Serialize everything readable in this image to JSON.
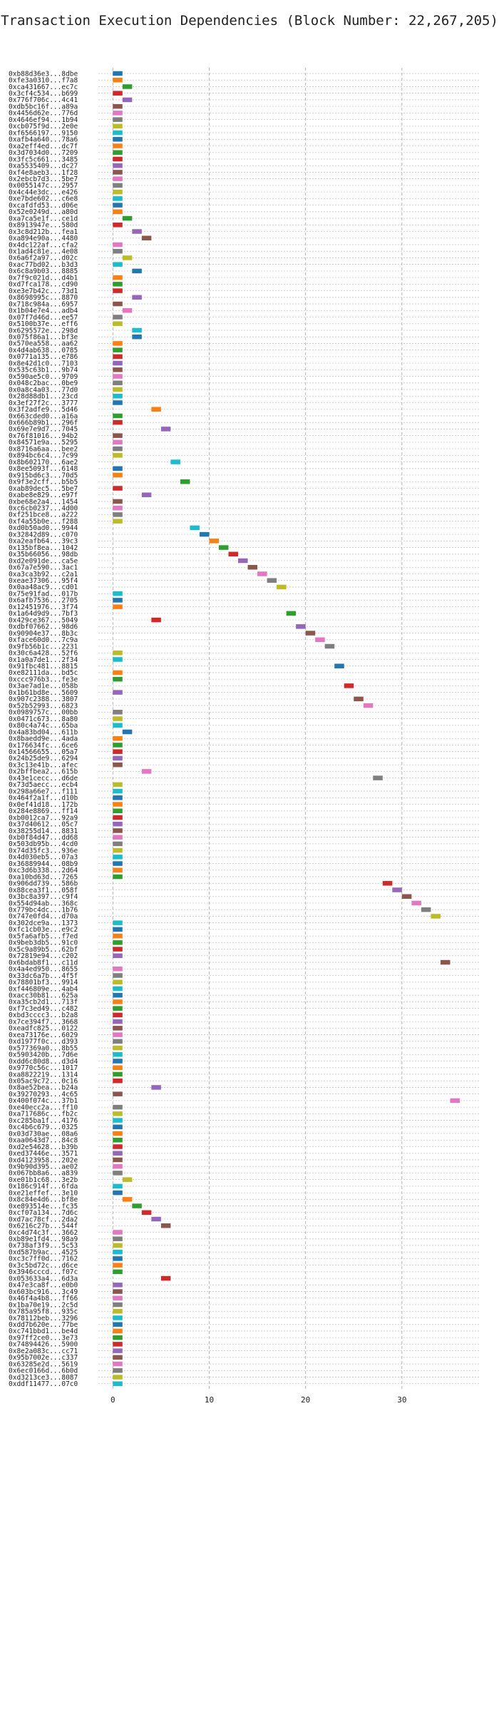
{
  "chart_data": {
    "type": "bar",
    "title": "Transaction Execution Dependencies (Block Number: 22,267,205)",
    "xlabel": "",
    "ylabel": "",
    "xlim": [
      -1.5,
      38
    ],
    "xticks": [
      0,
      10,
      20,
      30
    ],
    "grid": true,
    "bar_width": 1,
    "palette": [
      "#1f77b4",
      "#ff7f0e",
      "#2ca02c",
      "#d62728",
      "#9467bd",
      "#8c564b",
      "#e377c2",
      "#7f7f7f",
      "#bcbd22",
      "#17becf"
    ],
    "transactions": [
      {
        "label": "0xb88d36e3...8dbe",
        "start": 0
      },
      {
        "label": "0xfe3a0310...f7a8",
        "start": 0
      },
      {
        "label": "0xca431667...ec7c",
        "start": 1
      },
      {
        "label": "0x3cf4c534...b699",
        "start": 0
      },
      {
        "label": "0x776f706c...4c41",
        "start": 1
      },
      {
        "label": "0xdb5bc16f...a89a",
        "start": 0
      },
      {
        "label": "0x4456d62e...776d",
        "start": 0
      },
      {
        "label": "0x4646ef94...1b94",
        "start": 0
      },
      {
        "label": "0xcb075f9d...2e0e",
        "start": 0
      },
      {
        "label": "0xf6566197...9150",
        "start": 0
      },
      {
        "label": "0xafb4a640...78a6",
        "start": 0
      },
      {
        "label": "0xa2eff4ed...dc7f",
        "start": 0
      },
      {
        "label": "0x3d7034d0...7209",
        "start": 0
      },
      {
        "label": "0x3fc5c661...3485",
        "start": 0
      },
      {
        "label": "0xa5535409...dc27",
        "start": 0
      },
      {
        "label": "0xf4e8aeb3...1f28",
        "start": 0
      },
      {
        "label": "0x2ebcb7d3...5be7",
        "start": 0
      },
      {
        "label": "0x0055147c...2957",
        "start": 0
      },
      {
        "label": "0x4c44e3dc...e426",
        "start": 0
      },
      {
        "label": "0xe7bde602...c6e8",
        "start": 0
      },
      {
        "label": "0xcafdfd53...d06e",
        "start": 0
      },
      {
        "label": "0x52e0249d...a80d",
        "start": 0
      },
      {
        "label": "0xa7ca5e1f...ce1d",
        "start": 1
      },
      {
        "label": "0x8913947e...580d",
        "start": 0
      },
      {
        "label": "0x3c8d212b...fea1",
        "start": 2
      },
      {
        "label": "0xa894e90a...4480",
        "start": 3
      },
      {
        "label": "0x4dc122af...cfa2",
        "start": 0
      },
      {
        "label": "0x1ad4c81e...4e08",
        "start": 0
      },
      {
        "label": "0x6a6f2a97...d02c",
        "start": 1
      },
      {
        "label": "0xac77bd02...b3d3",
        "start": 0
      },
      {
        "label": "0x6c8a9b03...8885",
        "start": 2
      },
      {
        "label": "0x7f9c021d...d4b1",
        "start": 0
      },
      {
        "label": "0xd7fca178...cd90",
        "start": 0
      },
      {
        "label": "0xe3e7b42c...73d1",
        "start": 0
      },
      {
        "label": "0x8698995c...8870",
        "start": 2
      },
      {
        "label": "0x718c984a...6957",
        "start": 0
      },
      {
        "label": "0x1b04e7e4...adb4",
        "start": 1
      },
      {
        "label": "0x07f7d46d...ee57",
        "start": 0
      },
      {
        "label": "0x5100b37e...eff6",
        "start": 0
      },
      {
        "label": "0x6295572e...298d",
        "start": 2
      },
      {
        "label": "0x075f86a1...bf3e",
        "start": 2
      },
      {
        "label": "0x570ea558...aa62",
        "start": 0
      },
      {
        "label": "0x4d4ab638...0785",
        "start": 0
      },
      {
        "label": "0x0771a135...e786",
        "start": 0
      },
      {
        "label": "0x8e42d1c0...7103",
        "start": 0
      },
      {
        "label": "0x535c63b1...9b74",
        "start": 0
      },
      {
        "label": "0x590ae5c0...9709",
        "start": 0
      },
      {
        "label": "0x048c2bac...0be9",
        "start": 0
      },
      {
        "label": "0x0a8c4a03...77d0",
        "start": 0
      },
      {
        "label": "0x28d88db1...23cd",
        "start": 0
      },
      {
        "label": "0x3ef27f2c...3777",
        "start": 0
      },
      {
        "label": "0x3f2adfe9...5d46",
        "start": 4
      },
      {
        "label": "0x663cded0...a16a",
        "start": 0
      },
      {
        "label": "0x666b89b1...296f",
        "start": 0
      },
      {
        "label": "0x69e7e9d7...7045",
        "start": 5
      },
      {
        "label": "0x76f81016...94b2",
        "start": 0
      },
      {
        "label": "0x84571e9a...5295",
        "start": 0
      },
      {
        "label": "0x8716a6aa...bee2",
        "start": 0
      },
      {
        "label": "0x894bc6c4...7c99",
        "start": 0
      },
      {
        "label": "0x8b602170...6ae2",
        "start": 6
      },
      {
        "label": "0x8ee5093f...6148",
        "start": 0
      },
      {
        "label": "0x915bd6c3...70d5",
        "start": 0
      },
      {
        "label": "0x9f3e2cff...b5b5",
        "start": 7
      },
      {
        "label": "0xab89dec5...5be7",
        "start": 0
      },
      {
        "label": "0xabe8e829...e97f",
        "start": 3
      },
      {
        "label": "0xbe68e2a4...1454",
        "start": 0
      },
      {
        "label": "0xc6cb0237...4d00",
        "start": 0
      },
      {
        "label": "0xf251bce8...a222",
        "start": 0
      },
      {
        "label": "0xf4a55b0e...f288",
        "start": 0
      },
      {
        "label": "0xd0b50ad0...9944",
        "start": 8
      },
      {
        "label": "0x32842d89...c070",
        "start": 9
      },
      {
        "label": "0xa2eafb64...39c3",
        "start": 10
      },
      {
        "label": "0x135bf8ea...1042",
        "start": 11
      },
      {
        "label": "0x35b66056...98db",
        "start": 12
      },
      {
        "label": "0xd2e091de...ca5e",
        "start": 13
      },
      {
        "label": "0x67a7e590...3ac1",
        "start": 14
      },
      {
        "label": "0xa3ca3b92...c2a1",
        "start": 15
      },
      {
        "label": "0xeae37306...95f4",
        "start": 16
      },
      {
        "label": "0x0aa48ac9...cd01",
        "start": 17
      },
      {
        "label": "0x75e91fad...017b",
        "start": 0
      },
      {
        "label": "0x6afb7536...2705",
        "start": 0
      },
      {
        "label": "0x12451976...3f74",
        "start": 0
      },
      {
        "label": "0x1a64d9d9...7bf3",
        "start": 18
      },
      {
        "label": "0x429ce367...5049",
        "start": 4
      },
      {
        "label": "0xdbf07662...98d6",
        "start": 19
      },
      {
        "label": "0x90904e37...8b3c",
        "start": 20
      },
      {
        "label": "0xface60d0...7c9a",
        "start": 21
      },
      {
        "label": "0x9fb56b1c...2231",
        "start": 22
      },
      {
        "label": "0x30c6a428...52f6",
        "start": 0
      },
      {
        "label": "0x1a0a7de1...2f34",
        "start": 0
      },
      {
        "label": "0x91fbc481...8815",
        "start": 23
      },
      {
        "label": "0xe82111da...bd5c",
        "start": 0
      },
      {
        "label": "0xccc976b3...fe3e",
        "start": 0
      },
      {
        "label": "0x3ae7ad1e...058b",
        "start": 24
      },
      {
        "label": "0x1b61bd8e...5609",
        "start": 0
      },
      {
        "label": "0x907c2388...3807",
        "start": 25
      },
      {
        "label": "0x52b52993...6823",
        "start": 26
      },
      {
        "label": "0x0989757c...00bb",
        "start": 0
      },
      {
        "label": "0x0471c673...8a80",
        "start": 0
      },
      {
        "label": "0x80c4a74c...65ba",
        "start": 0
      },
      {
        "label": "0x4a83bd04...611b",
        "start": 1
      },
      {
        "label": "0x8baedd9e...4ada",
        "start": 0
      },
      {
        "label": "0x176634fc...6ce6",
        "start": 0
      },
      {
        "label": "0x14566655...05a7",
        "start": 0
      },
      {
        "label": "0x24b25de9...6294",
        "start": 0
      },
      {
        "label": "0x3c13e41b...afec",
        "start": 0
      },
      {
        "label": "0x2bffbea2...615b",
        "start": 3
      },
      {
        "label": "0x43e1cecc...d6de",
        "start": 27
      },
      {
        "label": "0x73d5aecc...ecb4",
        "start": 0
      },
      {
        "label": "0x298a66e7...f111",
        "start": 0
      },
      {
        "label": "0x464f2a1f...d10b",
        "start": 0
      },
      {
        "label": "0x0ef41d18...172b",
        "start": 0
      },
      {
        "label": "0x284e8869...ff14",
        "start": 0
      },
      {
        "label": "0xb0012ca7...92a9",
        "start": 0
      },
      {
        "label": "0x37d40612...05c7",
        "start": 0
      },
      {
        "label": "0x38255d14...8831",
        "start": 0
      },
      {
        "label": "0xb0f84d47...dd68",
        "start": 0
      },
      {
        "label": "0x503db95b...4cd0",
        "start": 0
      },
      {
        "label": "0x74d35fc3...936e",
        "start": 0
      },
      {
        "label": "0x4d030eb5...07a3",
        "start": 0
      },
      {
        "label": "0x36889944...08b9",
        "start": 0
      },
      {
        "label": "0xc3d6b338...2d64",
        "start": 0
      },
      {
        "label": "0xa10bd63d...7265",
        "start": 0
      },
      {
        "label": "0x906dd739...586b",
        "start": 28
      },
      {
        "label": "0x88cea3f1...058f",
        "start": 29
      },
      {
        "label": "0x3bc8a397...c9f4",
        "start": 30
      },
      {
        "label": "0x554d94ab...368c",
        "start": 31
      },
      {
        "label": "0x779bc4dc...1b76",
        "start": 32
      },
      {
        "label": "0x747e0fd4...d70a",
        "start": 33
      },
      {
        "label": "0x302dce9a...1373",
        "start": 0
      },
      {
        "label": "0xfc1cb03e...e9c2",
        "start": 0
      },
      {
        "label": "0x5fa6afb5...f7ed",
        "start": 0
      },
      {
        "label": "0x9beb3db5...91c0",
        "start": 0
      },
      {
        "label": "0x5c9a89b5...62bf",
        "start": 0
      },
      {
        "label": "0x72819e94...c202",
        "start": 0
      },
      {
        "label": "0x6bdab8f1...c11d",
        "start": 34
      },
      {
        "label": "0x4a4ed950...8655",
        "start": 0
      },
      {
        "label": "0x33dc6a7b...4f5f",
        "start": 0
      },
      {
        "label": "0x78801bf3...9914",
        "start": 0
      },
      {
        "label": "0xf446809e...4ab4",
        "start": 0
      },
      {
        "label": "0xacc30b81...625a",
        "start": 0
      },
      {
        "label": "0xa35cb2d1...713f",
        "start": 0
      },
      {
        "label": "0xf7c3ed49...c482",
        "start": 0
      },
      {
        "label": "0xbd3cccc3...b2a8",
        "start": 0
      },
      {
        "label": "0x7ce394f7...3668",
        "start": 0
      },
      {
        "label": "0xeadfc825...0122",
        "start": 0
      },
      {
        "label": "0xea73176e...6029",
        "start": 0
      },
      {
        "label": "0xd1977f0c...d393",
        "start": 0
      },
      {
        "label": "0x577369a0...8b55",
        "start": 0
      },
      {
        "label": "0x5903420b...7d6e",
        "start": 0
      },
      {
        "label": "0xdd6c80d8...d3d4",
        "start": 0
      },
      {
        "label": "0x9770c56c...1017",
        "start": 0
      },
      {
        "label": "0xa8822219...1314",
        "start": 0
      },
      {
        "label": "0x05ac9c72...0c16",
        "start": 0
      },
      {
        "label": "0x8ae52bea...b24a",
        "start": 4
      },
      {
        "label": "0x39270293...4c65",
        "start": 0
      },
      {
        "label": "0x400f074c...37b1",
        "start": 35
      },
      {
        "label": "0xe40ecc2a...ff10",
        "start": 0
      },
      {
        "label": "0xa717686c...fb2c",
        "start": 0
      },
      {
        "label": "0xc285ba1f...4176",
        "start": 0
      },
      {
        "label": "0xc4b6c679...0325",
        "start": 0
      },
      {
        "label": "0x03d730ae...08a6",
        "start": 0
      },
      {
        "label": "0xaa0643d7...84c8",
        "start": 0
      },
      {
        "label": "0xd2e54628...b39b",
        "start": 0
      },
      {
        "label": "0xed37446e...3571",
        "start": 0
      },
      {
        "label": "0xd4123958...202e",
        "start": 0
      },
      {
        "label": "0x9b90d395...ae02",
        "start": 0
      },
      {
        "label": "0x067bb8a6...a839",
        "start": 0
      },
      {
        "label": "0xe01b1c68...3e2b",
        "start": 1
      },
      {
        "label": "0x186c914f...6fda",
        "start": 0
      },
      {
        "label": "0xe21effef...3e10",
        "start": 0
      },
      {
        "label": "0x8c84e4d6...bf8e",
        "start": 1
      },
      {
        "label": "0xe893514e...fc35",
        "start": 2
      },
      {
        "label": "0xcf07a134...7d6c",
        "start": 3
      },
      {
        "label": "0xd7ac78cf...2da2",
        "start": 4
      },
      {
        "label": "0x6216c27b...544f",
        "start": 5
      },
      {
        "label": "0xc4d74c3f...3662",
        "start": 0
      },
      {
        "label": "0xb89e1fd4...98a9",
        "start": 0
      },
      {
        "label": "0x738af3f9...5c53",
        "start": 0
      },
      {
        "label": "0xd587b9ac...4525",
        "start": 0
      },
      {
        "label": "0xc3c7ff0d...7162",
        "start": 0
      },
      {
        "label": "0x3c5bd72c...d6ce",
        "start": 0
      },
      {
        "label": "0x3946cccd...f07c",
        "start": 0
      },
      {
        "label": "0x053633a4...6d3a",
        "start": 5
      },
      {
        "label": "0x47e3ca8f...e0b0",
        "start": 0
      },
      {
        "label": "0x603bc916...3c49",
        "start": 0
      },
      {
        "label": "0x46f4a4b8...ff66",
        "start": 0
      },
      {
        "label": "0x1ba70e19...2c5d",
        "start": 0
      },
      {
        "label": "0x785a95f8...935c",
        "start": 0
      },
      {
        "label": "0x78112beb...3296",
        "start": 0
      },
      {
        "label": "0xdd7b620e...77be",
        "start": 0
      },
      {
        "label": "0xc741bbd1...be4d",
        "start": 0
      },
      {
        "label": "0x97ff2ce0...3e73",
        "start": 0
      },
      {
        "label": "0x74894426...5900",
        "start": 0
      },
      {
        "label": "0x8e2a083c...cc71",
        "start": 0
      },
      {
        "label": "0x95b7002e...c337",
        "start": 0
      },
      {
        "label": "0x63285e2d...5619",
        "start": 0
      },
      {
        "label": "0x6ec0166d...6b0d",
        "start": 0
      },
      {
        "label": "0xd3213ce3...8087",
        "start": 0
      },
      {
        "label": "0xddf11477...07c0",
        "start": 0
      }
    ]
  }
}
